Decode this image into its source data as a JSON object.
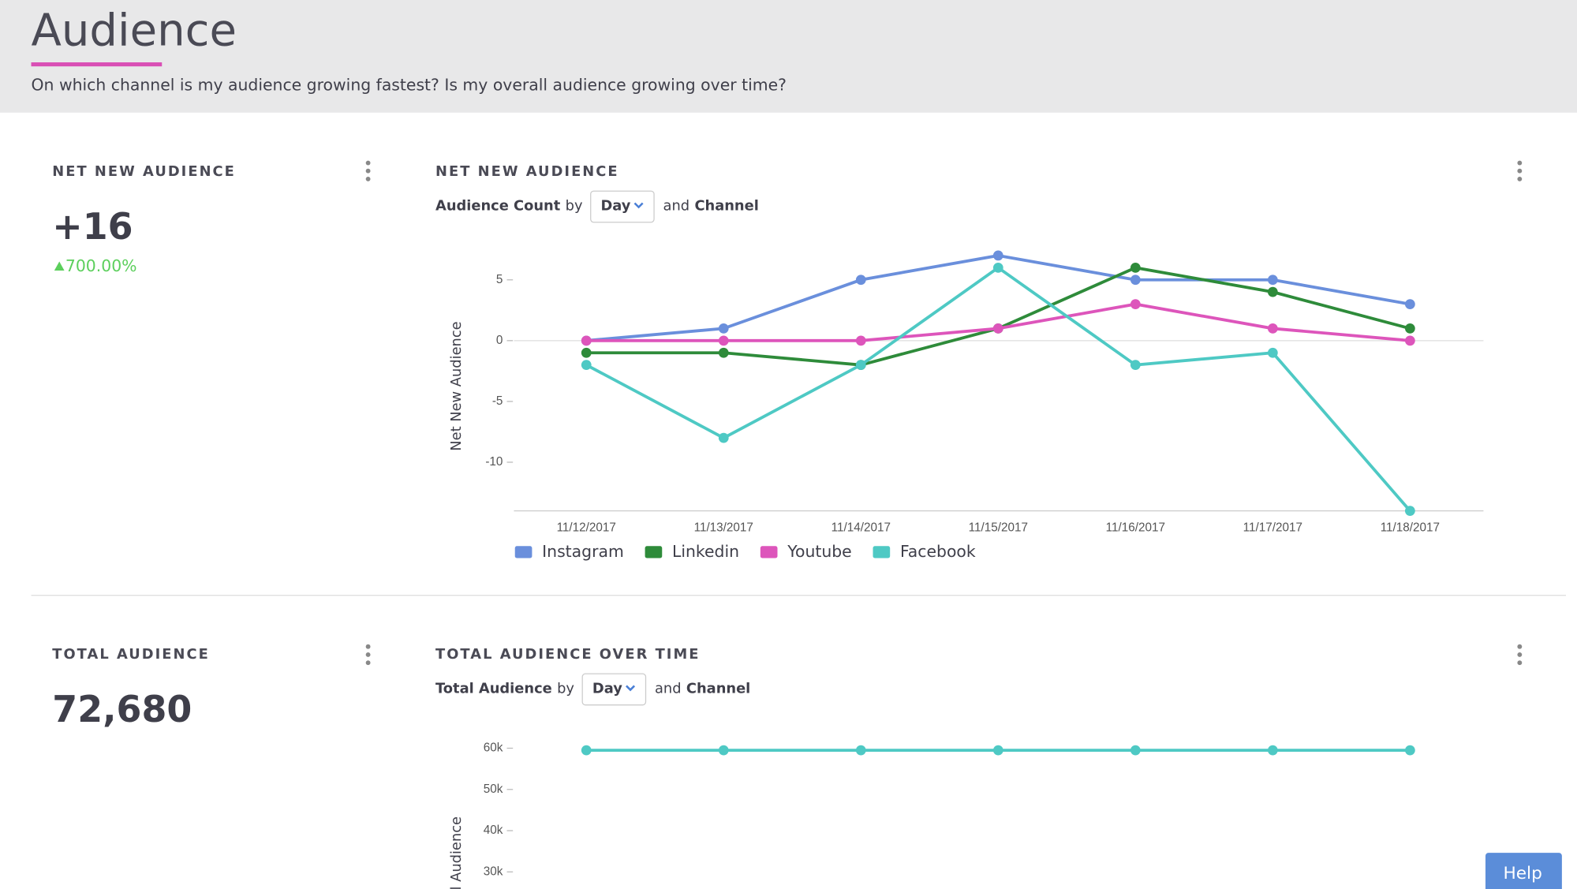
{
  "header": {
    "title": "Audience",
    "subtitle": "On which channel is my audience growing fastest? Is my overall audience growing over time?"
  },
  "widgets": [
    {
      "title": "NET NEW AUDIENCE",
      "value": "+16",
      "change": "700.00%"
    },
    {
      "title": "TOTAL AUDIENCE",
      "value": "72,680"
    }
  ],
  "chart_data": [
    {
      "type": "line",
      "title": "NET NEW AUDIENCE",
      "control": {
        "measure": "Audience Count",
        "by": "by",
        "group": "Day",
        "and": "and",
        "dimension": "Channel"
      },
      "y_label": "Net New Audience",
      "x": [
        "11/12/2017",
        "11/13/2017",
        "11/14/2017",
        "11/15/2017",
        "11/16/2017",
        "11/17/2017",
        "11/18/2017"
      ],
      "series": [
        {
          "name": "Instagram",
          "color": "#6a8fdc",
          "values": [
            0,
            1,
            5,
            7,
            5,
            5,
            3
          ]
        },
        {
          "name": "Linkedin",
          "color": "#2e8b3a",
          "values": [
            -1,
            -1,
            -2,
            1,
            6,
            4,
            1
          ]
        },
        {
          "name": "Youtube",
          "color": "#dd55bb",
          "values": [
            0,
            0,
            0,
            1,
            3,
            1,
            0
          ]
        },
        {
          "name": "Facebook",
          "color": "#4ec9c4",
          "values": [
            -2,
            -8,
            -2,
            6,
            -2,
            -1,
            -14
          ]
        }
      ],
      "ylim": [
        -14,
        8
      ],
      "yticks": [
        -10,
        -5,
        0,
        5
      ]
    },
    {
      "type": "line",
      "title": "TOTAL AUDIENCE OVER TIME",
      "control": {
        "measure": "Total Audience",
        "by": "by",
        "group": "Day",
        "and": "and",
        "dimension": "Channel"
      },
      "y_label": "Total Audience",
      "x": [
        null,
        null,
        null,
        null,
        null,
        null,
        null
      ],
      "series": [
        {
          "color": "#4ec9c4",
          "values": [
            59500,
            59500,
            59500,
            59500,
            59500,
            59500,
            59500
          ]
        }
      ],
      "ylim": [
        0,
        62000
      ],
      "yticks": [
        {
          "value": 30000,
          "label": "30k"
        },
        {
          "value": 40000,
          "label": "40k"
        },
        {
          "value": 50000,
          "label": "50k"
        },
        {
          "value": 60000,
          "label": "60k"
        }
      ]
    }
  ],
  "help": "Help"
}
